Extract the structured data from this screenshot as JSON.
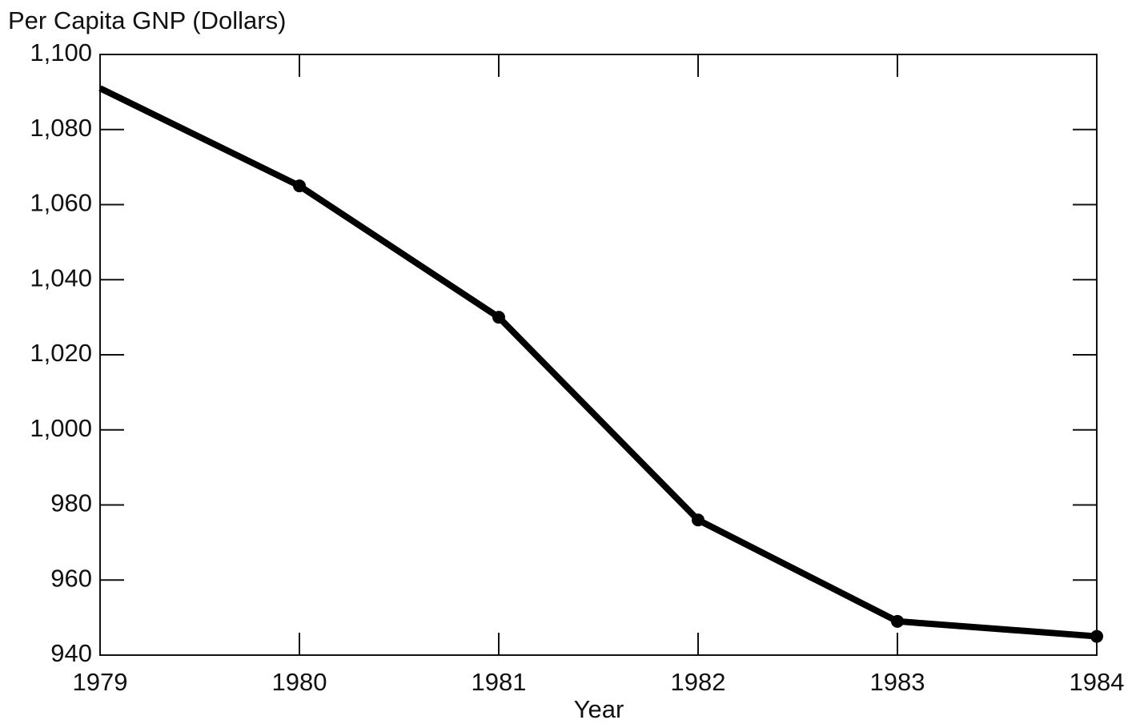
{
  "chart_data": {
    "type": "line",
    "y_axis_label": "Per Capita GNP (Dollars)",
    "x_axis_label": "Year",
    "x": [
      1979,
      1980,
      1981,
      1982,
      1983,
      1984
    ],
    "values": [
      1091,
      1065,
      1030,
      976,
      949,
      945
    ],
    "color": "#000000",
    "xlim": [
      1979,
      1984
    ],
    "xticks": [
      1979,
      1980,
      1981,
      1982,
      1983,
      1984
    ],
    "ylim": [
      940,
      1100
    ],
    "yticks": [
      940,
      960,
      980,
      {
        "value": 1000,
        "label": "1,000"
      },
      {
        "value": 1020,
        "label": "1,020"
      },
      {
        "value": 1040,
        "label": "1,040"
      },
      {
        "value": 1060,
        "label": "1,060"
      },
      {
        "value": 1080,
        "label": "1,080"
      },
      {
        "value": 1100,
        "label": "1,100"
      }
    ],
    "grid": false
  }
}
